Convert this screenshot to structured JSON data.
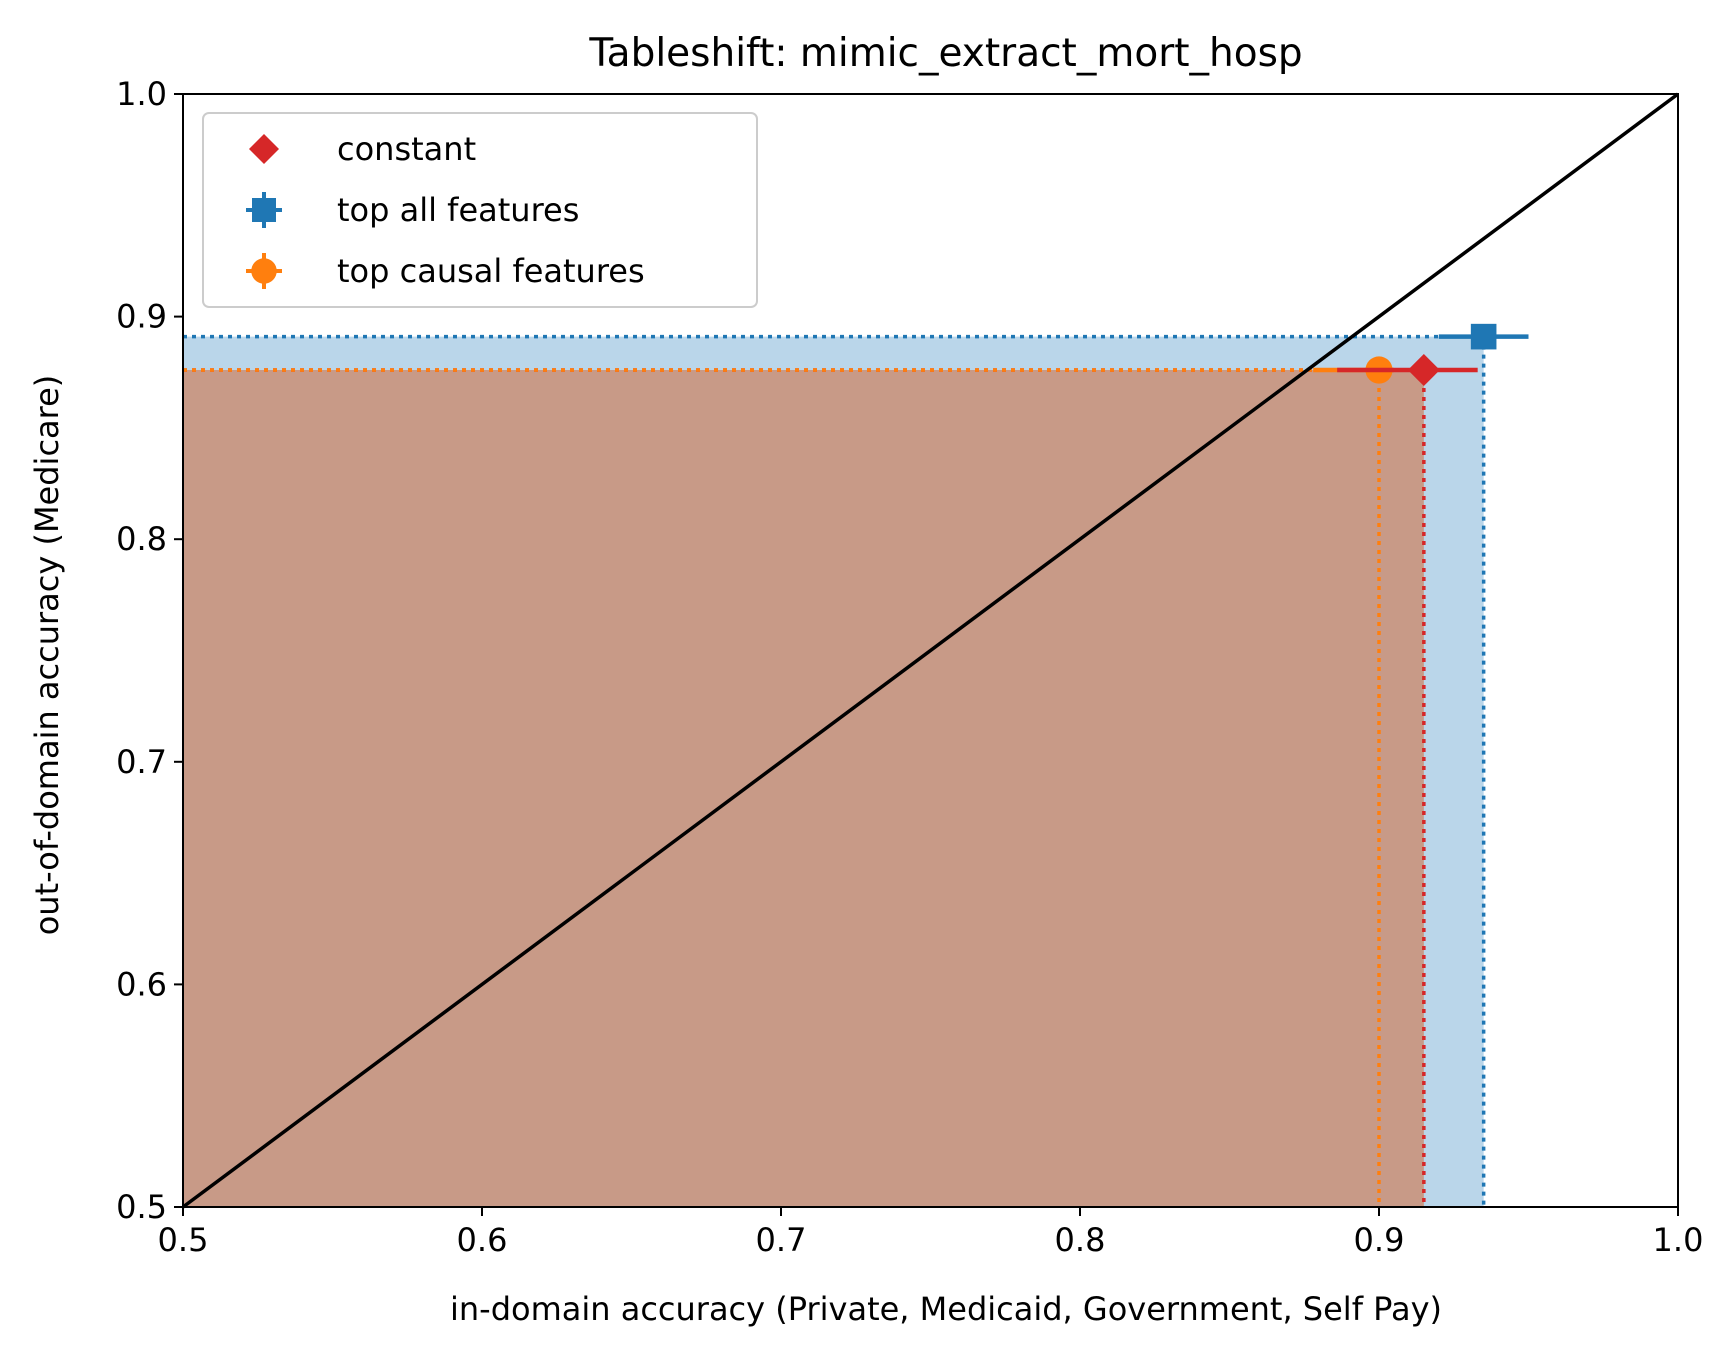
{
  "chart_data": {
    "type": "scatter",
    "title": "Tableshift: mimic_extract_mort_hosp",
    "xlabel": "in-domain accuracy (Private, Medicaid, Government, Self Pay)",
    "ylabel": "out-of-domain accuracy (Medicare)",
    "xlim": [
      0.5,
      1.0
    ],
    "ylim": [
      0.5,
      1.0
    ],
    "xticks": [
      "0.5",
      "0.6",
      "0.7",
      "0.8",
      "0.9",
      "1.0"
    ],
    "yticks": [
      "0.5",
      "0.6",
      "0.7",
      "0.8",
      "0.9",
      "1.0"
    ],
    "grid": false,
    "legend_position": "upper left",
    "diagonal": {
      "from": [
        0.5,
        0.5
      ],
      "to": [
        1.0,
        1.0
      ],
      "color": "#000000"
    },
    "series": [
      {
        "name": "constant",
        "marker": "diamond",
        "color": "#d62728",
        "x": 0.915,
        "y": 0.876,
        "xerr": [
          0.886,
          0.933
        ],
        "yerr": [
          0.876,
          0.876
        ],
        "shade": "#c89a87"
      },
      {
        "name": "top all features",
        "marker": "square",
        "color": "#1f77b4",
        "x": 0.935,
        "y": 0.891,
        "xerr": [
          0.92,
          0.95
        ],
        "yerr": [
          0.891,
          0.891
        ],
        "shade": "#bad6ea"
      },
      {
        "name": "top causal features",
        "marker": "circle",
        "color": "#ff7f0e",
        "x": 0.9,
        "y": 0.876,
        "xerr": [
          0.878,
          0.905
        ],
        "yerr": [
          0.876,
          0.876
        ],
        "shade": "#c89a87"
      }
    ]
  }
}
